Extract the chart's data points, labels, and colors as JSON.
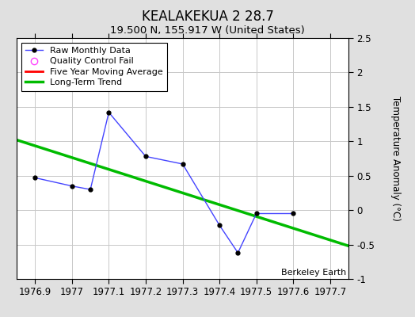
{
  "title": "KEALAKEKUA 2 28.7",
  "subtitle": "19.500 N, 155.917 W (United States)",
  "ylabel": "Temperature Anomaly (°C)",
  "watermark": "Berkeley Earth",
  "raw_x": [
    1976.9,
    1977.0,
    1977.05,
    1977.1,
    1977.2,
    1977.3,
    1977.4,
    1977.45,
    1977.5,
    1977.6
  ],
  "raw_y": [
    0.47,
    0.35,
    0.3,
    1.42,
    0.78,
    0.67,
    -0.22,
    -0.62,
    -0.05,
    -0.05
  ],
  "trend_x": [
    1976.85,
    1977.75
  ],
  "trend_y": [
    1.02,
    -0.52
  ],
  "xlim": [
    1976.85,
    1977.75
  ],
  "ylim": [
    -1.0,
    2.5
  ],
  "ytick_vals": [
    -1.0,
    -0.5,
    0.0,
    0.5,
    1.0,
    1.5,
    2.0,
    2.5
  ],
  "ytick_labels": [
    "-1",
    "-0.5",
    "0",
    "0.5",
    "1",
    "1.5",
    "2",
    "2.5"
  ],
  "xticks": [
    1976.9,
    1977.0,
    1977.1,
    1977.2,
    1977.3,
    1977.4,
    1977.5,
    1977.6,
    1977.7
  ],
  "xtick_labels": [
    "1976.9",
    "1977",
    "1977.1",
    "1977.2",
    "1977.3",
    "1977.4",
    "1977.5",
    "1977.6",
    "1977.7"
  ],
  "raw_color": "#4444ff",
  "trend_color": "#00bb00",
  "mavg_color": "#ff0000",
  "qc_color": "#ff44ff",
  "bg_color": "#e0e0e0",
  "plot_bg_color": "#ffffff",
  "grid_color": "#c8c8c8",
  "legend_entries": [
    "Raw Monthly Data",
    "Quality Control Fail",
    "Five Year Moving Average",
    "Long-Term Trend"
  ]
}
